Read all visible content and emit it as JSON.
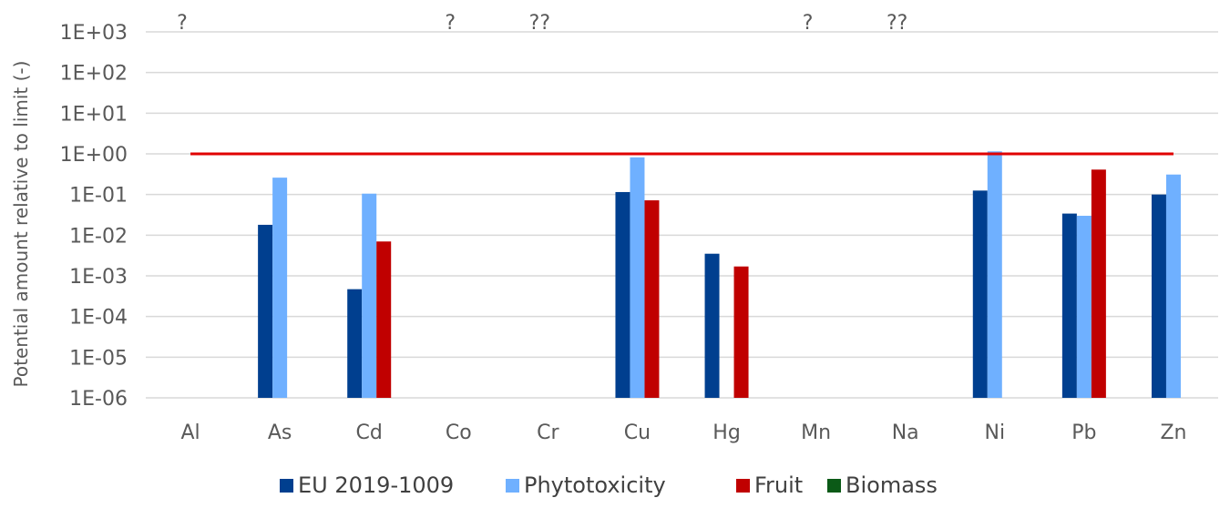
{
  "chart_data": {
    "type": "bar",
    "title": "",
    "xlabel": "",
    "ylabel": "Potential amount relative to limit (-)",
    "y_scale": "log",
    "ylim": [
      1e-06,
      1000
    ],
    "y_ticks": [
      "1E-06",
      "1E-05",
      "1E-04",
      "1E-03",
      "1E-02",
      "1E-01",
      "1E+00",
      "1E+01",
      "1E+02",
      "1E+03"
    ],
    "grid": true,
    "legend_position": "bottom",
    "categories": [
      "Al",
      "As",
      "Cd",
      "Co",
      "Cr",
      "Cu",
      "Hg",
      "Mn",
      "Na",
      "Ni",
      "Pb",
      "Zn"
    ],
    "series": [
      {
        "name": "EU 2019-1009",
        "color": "#003f8f",
        "values": [
          null,
          0.018,
          0.00047,
          null,
          null,
          0.115,
          0.0035,
          null,
          null,
          0.125,
          0.034,
          0.1
        ]
      },
      {
        "name": "Phytotoxicity",
        "color": "#6fb0ff",
        "values": [
          null,
          0.26,
          0.105,
          null,
          null,
          0.82,
          null,
          null,
          null,
          1.15,
          0.03,
          0.31
        ]
      },
      {
        "name": "Fruit",
        "color": "#c00000",
        "values": [
          null,
          null,
          0.007,
          null,
          null,
          0.072,
          0.0017,
          null,
          null,
          null,
          0.41,
          null
        ]
      },
      {
        "name": "Biomass",
        "color": "#0b5a17",
        "values": [
          null,
          null,
          null,
          null,
          null,
          null,
          null,
          null,
          null,
          null,
          null,
          null
        ]
      }
    ],
    "reference_line": {
      "value": 1,
      "color": "#e00000"
    },
    "annotations": [
      {
        "category": "Al",
        "text": "?"
      },
      {
        "category": "Co",
        "text": "?"
      },
      {
        "category": "Cr",
        "text": "??"
      },
      {
        "category": "Mn",
        "text": "?"
      },
      {
        "category": "Na",
        "text": "??"
      }
    ]
  }
}
